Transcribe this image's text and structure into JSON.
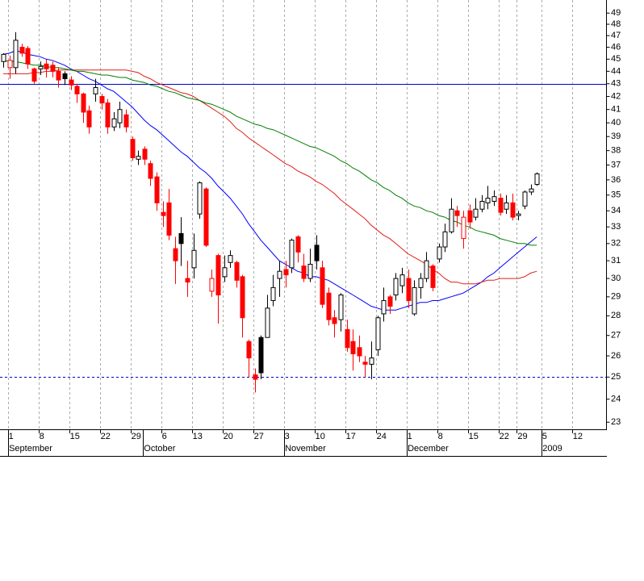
{
  "chart_data": {
    "type": "candlestick",
    "scale": "log",
    "ylim": [
      22.7,
      50.2
    ],
    "yticks": [
      23,
      24,
      25,
      26,
      27,
      28,
      29,
      30,
      31,
      32,
      33,
      34,
      35,
      36,
      37,
      38,
      39,
      40,
      41,
      42,
      43,
      44,
      45,
      46,
      47,
      48,
      49
    ],
    "grid": "x",
    "categories": [
      null,
      "1",
      null,
      null,
      null,
      null,
      "8",
      null,
      null,
      null,
      null,
      "15",
      null,
      null,
      null,
      null,
      "22",
      null,
      null,
      null,
      null,
      "29",
      null,
      null,
      null,
      null,
      "6",
      null,
      null,
      null,
      null,
      "13",
      null,
      null,
      null,
      null,
      "20",
      null,
      null,
      null,
      null,
      "27",
      null,
      null,
      null,
      null,
      "3",
      null,
      null,
      null,
      null,
      "10",
      null,
      null,
      null,
      null,
      "17",
      null,
      null,
      null,
      null,
      "24",
      null,
      null,
      null,
      null,
      "1",
      null,
      null,
      null,
      null,
      "8",
      null,
      null,
      null,
      null,
      "15",
      null,
      null,
      null,
      null,
      "22",
      null,
      null,
      "29",
      null,
      null,
      null,
      "5",
      null,
      null,
      null,
      null,
      "12",
      null,
      null,
      null,
      null
    ],
    "category_groups": [
      null,
      "September",
      null,
      null,
      null,
      null,
      null,
      null,
      null,
      null,
      null,
      null,
      null,
      null,
      null,
      null,
      null,
      null,
      null,
      null,
      null,
      null,
      null,
      "October",
      null,
      null,
      null,
      null,
      null,
      null,
      null,
      null,
      null,
      null,
      null,
      null,
      null,
      null,
      null,
      null,
      null,
      null,
      null,
      null,
      null,
      null,
      "November",
      null,
      null,
      null,
      null,
      null,
      null,
      null,
      null,
      null,
      null,
      null,
      null,
      null,
      null,
      null,
      null,
      null,
      null,
      null,
      "December",
      null,
      null,
      null,
      null,
      null,
      null,
      null,
      null,
      null,
      null,
      null,
      null,
      null,
      null,
      null,
      null,
      null,
      null,
      null,
      null,
      null,
      "2009",
      null,
      null,
      null,
      null,
      null,
      null,
      null,
      null,
      null
    ],
    "open": [
      44.8,
      44.3,
      44.3,
      46.0,
      45.9,
      44.2,
      44.2,
      44.6,
      44.5,
      44.0,
      43.8,
      43.3,
      42.8,
      42.2,
      40.9,
      42.2,
      42.0,
      41.5,
      39.7,
      40.0,
      40.6,
      38.8,
      37.4,
      38.1,
      37.1,
      36.2,
      33.9,
      34.5,
      31.7,
      32.6,
      30.0,
      30.6,
      33.8,
      35.4,
      29.3,
      31.3,
      30.1,
      30.9,
      30.9,
      30.1,
      26.7,
      25.1,
      26.9,
      26.9,
      28.8,
      30.0,
      30.5,
      30.6,
      32.4,
      30.7,
      30.0,
      31.9,
      30.6,
      29.2,
      27.9,
      27.8,
      27.3,
      26.7,
      26.4,
      25.7,
      25.6,
      26.3,
      28.1,
      29.0,
      29.1,
      29.6,
      30.0,
      28.1,
      29.5,
      30.0,
      30.7,
      31.1,
      31.8,
      32.7,
      34.0,
      32.3,
      34.0,
      33.6,
      34.1,
      34.5,
      34.6,
      34.8,
      34.1,
      34.5,
      33.7,
      34.3,
      35.2,
      35.7,
      null,
      null,
      null,
      null,
      null,
      null,
      null,
      null,
      null,
      null
    ],
    "high": [
      45.5,
      45.3,
      47.3,
      46.3,
      46.1,
      44.3,
      44.8,
      45.0,
      44.8,
      44.3,
      44.0,
      43.6,
      43.0,
      42.3,
      41.3,
      43.4,
      42.2,
      41.8,
      40.8,
      41.6,
      41.0,
      39.0,
      38.0,
      38.3,
      37.3,
      36.5,
      34.6,
      35.4,
      32.4,
      33.6,
      31.0,
      32.6,
      35.9,
      35.5,
      30.5,
      31.4,
      31.3,
      31.6,
      31.0,
      30.2,
      26.8,
      25.4,
      27.0,
      29.1,
      30.2,
      31.0,
      31.0,
      32.3,
      32.5,
      31.4,
      31.7,
      32.5,
      31.0,
      29.5,
      28.3,
      29.2,
      27.8,
      27.3,
      27.0,
      26.0,
      26.7,
      28.0,
      29.5,
      29.1,
      30.3,
      30.6,
      30.5,
      29.9,
      30.3,
      31.5,
      30.8,
      32.0,
      33.2,
      34.8,
      34.3,
      34.0,
      34.4,
      34.8,
      35.0,
      35.6,
      35.3,
      35.1,
      35.0,
      35.1,
      34.0,
      35.3,
      35.7,
      36.5,
      null,
      null,
      null,
      null,
      null,
      null,
      null,
      null,
      null,
      null
    ],
    "low": [
      44.3,
      43.4,
      43.8,
      45.2,
      44.2,
      43.0,
      43.7,
      43.5,
      43.5,
      42.7,
      42.9,
      42.5,
      41.5,
      40.0,
      39.2,
      41.6,
      41.0,
      39.2,
      39.4,
      39.6,
      39.3,
      37.3,
      37.0,
      37.0,
      35.6,
      34.0,
      33.0,
      32.2,
      29.7,
      30.7,
      29.0,
      30.0,
      33.5,
      31.8,
      29.0,
      27.6,
      29.8,
      30.6,
      29.5,
      26.9,
      25.0,
      24.3,
      24.9,
      26.9,
      28.5,
      29.0,
      29.5,
      30.3,
      30.9,
      29.8,
      29.8,
      30.5,
      28.4,
      27.5,
      26.9,
      27.2,
      26.2,
      25.3,
      25.7,
      25.0,
      24.9,
      26.0,
      27.7,
      28.1,
      28.8,
      29.2,
      28.4,
      28.0,
      28.9,
      29.8,
      29.3,
      30.9,
      31.5,
      32.6,
      33.0,
      31.7,
      32.9,
      33.4,
      33.9,
      34.1,
      34.3,
      33.7,
      33.8,
      33.4,
      33.4,
      34.1,
      35.0,
      35.6,
      null,
      null,
      null,
      null,
      null,
      null,
      null,
      null,
      null,
      null
    ],
    "close": [
      45.4,
      44.9,
      46.6,
      45.5,
      44.6,
      43.2,
      44.4,
      44.2,
      44.0,
      43.3,
      43.4,
      42.9,
      42.2,
      40.8,
      39.7,
      42.7,
      41.5,
      39.7,
      40.3,
      41.0,
      39.7,
      37.5,
      37.6,
      37.4,
      36.1,
      34.5,
      33.7,
      32.5,
      31.0,
      32.0,
      29.8,
      31.6,
      35.8,
      31.9,
      30.0,
      29.1,
      30.6,
      31.3,
      29.9,
      27.9,
      25.9,
      24.9,
      25.2,
      28.4,
      29.5,
      30.4,
      30.2,
      32.2,
      31.5,
      30.0,
      30.8,
      31.0,
      28.6,
      27.8,
      27.6,
      29.1,
      26.4,
      26.1,
      26.0,
      25.6,
      25.9,
      27.9,
      28.8,
      28.5,
      30.0,
      30.2,
      28.8,
      29.5,
      30.0,
      31.0,
      29.5,
      31.8,
      32.7,
      34.1,
      33.7,
      33.6,
      33.3,
      34.1,
      34.6,
      34.8,
      34.9,
      33.9,
      34.5,
      33.6,
      33.8,
      35.2,
      35.4,
      36.4,
      null,
      null,
      null,
      null,
      null,
      null,
      null,
      null,
      null,
      null
    ],
    "colors": {
      "up": "#000000",
      "down": "#ff0000",
      "hollow": "#ffffff"
    },
    "overlays": [
      {
        "color": "#0000ff",
        "values": [
          45.4,
          45.5,
          45.7,
          45.6,
          45.4,
          45.3,
          45.2,
          45.0,
          44.9,
          44.7,
          44.5,
          44.2,
          44.0,
          43.7,
          43.4,
          43.2,
          42.9,
          42.6,
          42.4,
          42.0,
          41.6,
          41.2,
          40.7,
          40.2,
          39.8,
          39.5,
          39.1,
          38.7,
          38.3,
          37.9,
          37.6,
          37.2,
          36.8,
          36.5,
          36.1,
          35.6,
          35.2,
          34.8,
          34.3,
          33.8,
          33.2,
          32.7,
          32.2,
          31.8,
          31.4,
          31.0,
          30.8,
          30.6,
          30.4,
          30.3,
          30.1,
          30.1,
          30.0,
          29.9,
          29.7,
          29.5,
          29.3,
          29.1,
          28.9,
          28.7,
          28.5,
          28.4,
          28.3,
          28.3,
          28.3,
          28.4,
          28.5,
          28.6,
          28.7,
          28.7,
          28.8,
          28.8,
          28.9,
          29.0,
          29.1,
          29.2,
          29.4,
          29.6,
          29.8,
          30.1,
          30.3,
          30.6,
          30.9,
          31.2,
          31.5,
          31.8,
          32.1,
          32.4,
          null,
          null,
          null,
          null,
          null,
          null,
          null,
          null,
          null,
          null
        ]
      },
      {
        "color": "#e0201a",
        "values": [
          43.8,
          43.8,
          43.8,
          43.8,
          43.8,
          43.9,
          43.9,
          44.0,
          44.0,
          44.1,
          44.1,
          44.1,
          44.1,
          44.1,
          44.1,
          44.1,
          44.1,
          44.1,
          44.1,
          44.1,
          44.1,
          44.0,
          43.9,
          43.6,
          43.4,
          43.1,
          42.9,
          42.7,
          42.5,
          42.3,
          42.2,
          42.0,
          41.7,
          41.4,
          41.1,
          40.8,
          40.5,
          40.1,
          39.6,
          39.3,
          38.9,
          38.6,
          38.3,
          38.0,
          37.7,
          37.4,
          37.1,
          36.9,
          36.6,
          36.4,
          36.2,
          35.9,
          35.7,
          35.4,
          35.1,
          34.7,
          34.4,
          34.1,
          33.8,
          33.5,
          33.1,
          32.8,
          32.5,
          32.3,
          32.0,
          31.7,
          31.4,
          31.2,
          31.0,
          30.8,
          30.5,
          30.3,
          30.0,
          29.8,
          29.8,
          29.7,
          29.7,
          29.7,
          29.8,
          29.9,
          29.9,
          30.0,
          30.0,
          30.0,
          30.0,
          30.1,
          30.3,
          30.4,
          null,
          null,
          null,
          null,
          null,
          null,
          null,
          null,
          null,
          null
        ]
      },
      {
        "color": "#008000",
        "values": [
          44.9,
          44.8,
          44.8,
          44.7,
          44.6,
          44.5,
          44.5,
          44.4,
          44.3,
          44.3,
          44.2,
          44.1,
          44.0,
          44.0,
          43.9,
          43.8,
          43.7,
          43.7,
          43.6,
          43.5,
          43.5,
          43.3,
          43.2,
          43.1,
          42.9,
          42.8,
          42.6,
          42.4,
          42.3,
          42.1,
          41.9,
          41.8,
          41.7,
          41.5,
          41.4,
          41.2,
          41.0,
          40.8,
          40.5,
          40.3,
          40.1,
          39.9,
          39.8,
          39.6,
          39.5,
          39.3,
          39.1,
          38.9,
          38.7,
          38.5,
          38.3,
          38.2,
          38.0,
          37.8,
          37.6,
          37.3,
          37.1,
          36.8,
          36.6,
          36.3,
          36.0,
          35.8,
          35.5,
          35.3,
          35.0,
          34.8,
          34.5,
          34.3,
          34.2,
          34.0,
          33.9,
          33.7,
          33.6,
          33.4,
          33.3,
          33.1,
          33.0,
          32.8,
          32.7,
          32.6,
          32.5,
          32.3,
          32.2,
          32.1,
          32.0,
          32.0,
          31.9,
          31.9,
          null,
          null,
          null,
          null,
          null,
          null,
          null,
          null,
          null,
          null
        ]
      }
    ],
    "reference_lines": [
      {
        "value": 43,
        "color": "#0000cc",
        "style": "solid"
      },
      {
        "value": 25,
        "color": "#0000cc",
        "style": "dotted"
      }
    ]
  }
}
